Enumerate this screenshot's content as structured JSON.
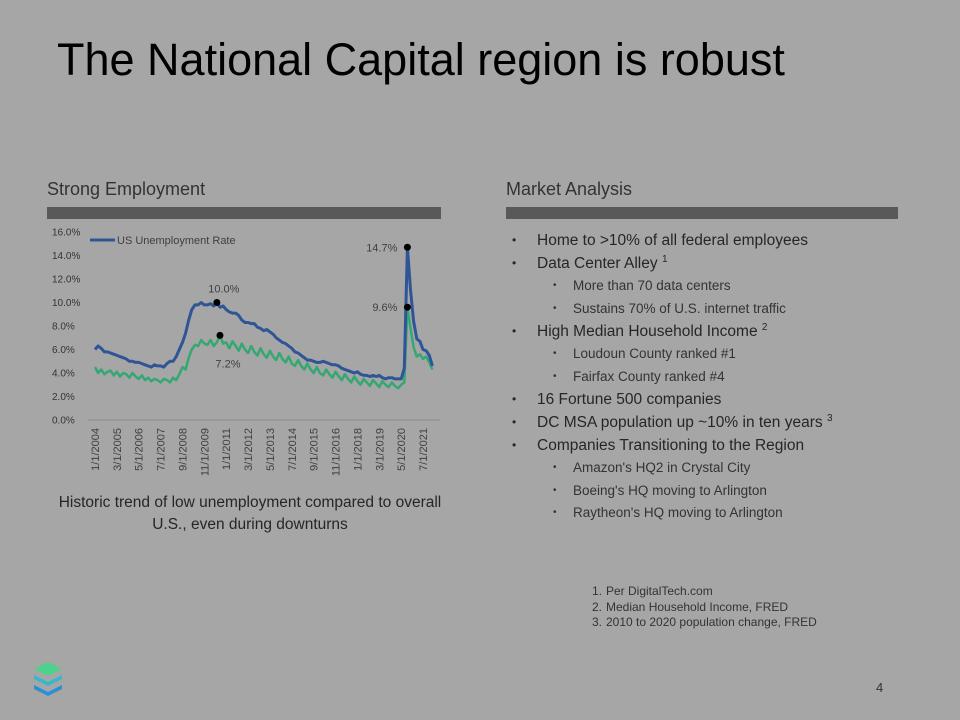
{
  "title": "The National Capital region is robust",
  "left_section": {
    "heading": "Strong Employment",
    "caption": "Historic trend of low unemployment compared to overall U.S., even during downturns"
  },
  "chart_data": {
    "type": "line",
    "categories": [
      "1/1/2004",
      null,
      null,
      null,
      null,
      null,
      null,
      "3/1/2005",
      null,
      null,
      null,
      null,
      null,
      null,
      "5/1/2006",
      null,
      null,
      null,
      null,
      null,
      null,
      "7/1/2007",
      null,
      null,
      null,
      null,
      null,
      null,
      "9/1/2008",
      null,
      null,
      null,
      null,
      null,
      null,
      "11/1/2009",
      null,
      null,
      null,
      null,
      null,
      null,
      "1/1/2011",
      null,
      null,
      null,
      null,
      null,
      null,
      "3/1/2012",
      null,
      null,
      null,
      null,
      null,
      null,
      "5/1/2013",
      null,
      null,
      null,
      null,
      null,
      null,
      "7/1/2014",
      null,
      null,
      null,
      null,
      null,
      null,
      "9/1/2015",
      null,
      null,
      null,
      null,
      null,
      null,
      "11/1/2016",
      null,
      null,
      null,
      null,
      null,
      null,
      "1/1/2018",
      null,
      null,
      null,
      null,
      null,
      null,
      "3/1/2019",
      null,
      null,
      null,
      null,
      null,
      null,
      "5/1/2020",
      null,
      null,
      null,
      null,
      null,
      null,
      "7/1/2021",
      null,
      null,
      null
    ],
    "series": [
      {
        "name": "US Unemployment Rate",
        "color": "#2f5597",
        "values": [
          6.0,
          6.3,
          6.1,
          5.8,
          5.8,
          5.7,
          5.6,
          5.5,
          5.4,
          5.3,
          5.2,
          5.0,
          5.0,
          4.9,
          4.9,
          4.8,
          4.7,
          4.6,
          4.5,
          4.7,
          4.6,
          4.6,
          4.5,
          4.8,
          5.0,
          5.0,
          5.4,
          6.0,
          6.6,
          7.4,
          8.5,
          9.4,
          9.8,
          9.8,
          10.0,
          9.8,
          9.8,
          9.9,
          9.7,
          10.0,
          9.6,
          9.7,
          9.4,
          9.2,
          9.1,
          9.1,
          8.9,
          8.5,
          8.3,
          8.3,
          8.2,
          8.2,
          7.9,
          7.8,
          7.6,
          7.7,
          7.5,
          7.3,
          7.0,
          6.8,
          6.6,
          6.5,
          6.3,
          6.1,
          5.8,
          5.7,
          5.5,
          5.3,
          5.1,
          5.1,
          5.0,
          4.9,
          4.9,
          5.0,
          4.9,
          4.8,
          4.7,
          4.7,
          4.6,
          4.4,
          4.3,
          4.2,
          4.1,
          4.0,
          4.1,
          3.9,
          3.8,
          3.8,
          3.7,
          3.8,
          3.7,
          3.8,
          3.6,
          3.5,
          3.6,
          3.6,
          3.5,
          3.5,
          3.5,
          4.4,
          14.7,
          11.1,
          8.4,
          6.9,
          6.7,
          6.0,
          5.9,
          5.5,
          4.6
        ],
        "value_labels": [
          null,
          null,
          null,
          null,
          null,
          null,
          null,
          null,
          null,
          null,
          null,
          null,
          null,
          null,
          null,
          null,
          null,
          null,
          null,
          null,
          null,
          null,
          null,
          null,
          null,
          null,
          null,
          null,
          null,
          null,
          null,
          null,
          null,
          null,
          null,
          null,
          null,
          null,
          null,
          "10.0%",
          null,
          null,
          null,
          null,
          null,
          null,
          null,
          null,
          null,
          null,
          null,
          null,
          null,
          null,
          null,
          null,
          null,
          null,
          null,
          null,
          null,
          null,
          null,
          null,
          null,
          null,
          null,
          null,
          null,
          null,
          null,
          null,
          null,
          null,
          null,
          null,
          null,
          null,
          null,
          null,
          null,
          null,
          null,
          null,
          null,
          null,
          null,
          null,
          null,
          null,
          null,
          null,
          null,
          null,
          null,
          null,
          null,
          null,
          null,
          null,
          "14.7%",
          null,
          null,
          null,
          null,
          null,
          null,
          null,
          null
        ]
      },
      {
        "color": "#33a872",
        "values": [
          4.5,
          4.0,
          4.3,
          3.9,
          4.1,
          4.2,
          3.8,
          4.1,
          3.7,
          4.0,
          3.9,
          3.6,
          4.0,
          3.7,
          3.5,
          3.8,
          3.4,
          3.6,
          3.3,
          3.5,
          3.4,
          3.2,
          3.5,
          3.4,
          3.2,
          3.6,
          3.4,
          3.9,
          4.5,
          4.3,
          5.3,
          6.0,
          6.4,
          6.3,
          6.8,
          6.5,
          6.4,
          6.8,
          6.3,
          6.6,
          7.2,
          6.5,
          6.6,
          6.1,
          6.7,
          6.3,
          5.9,
          6.5,
          6.0,
          5.7,
          6.3,
          5.8,
          5.5,
          6.1,
          5.6,
          5.3,
          5.9,
          5.4,
          5.1,
          5.7,
          5.2,
          4.9,
          5.4,
          4.8,
          4.6,
          5.1,
          4.6,
          4.3,
          4.8,
          4.3,
          4.0,
          4.5,
          4.0,
          3.8,
          4.3,
          3.9,
          3.6,
          4.1,
          3.7,
          3.4,
          3.9,
          3.5,
          3.2,
          3.7,
          3.3,
          3.0,
          3.5,
          3.2,
          2.9,
          3.4,
          3.1,
          2.8,
          3.3,
          3.0,
          2.8,
          3.2,
          2.9,
          2.7,
          3.0,
          3.2,
          9.6,
          7.8,
          6.2,
          5.4,
          5.6,
          5.2,
          5.4,
          4.9,
          4.3
        ],
        "value_labels": [
          null,
          null,
          null,
          null,
          null,
          null,
          null,
          null,
          null,
          null,
          null,
          null,
          null,
          null,
          null,
          null,
          null,
          null,
          null,
          null,
          null,
          null,
          null,
          null,
          null,
          null,
          null,
          null,
          null,
          null,
          null,
          null,
          null,
          null,
          null,
          null,
          null,
          null,
          null,
          null,
          "7.2%",
          null,
          null,
          null,
          null,
          null,
          null,
          null,
          null,
          null,
          null,
          null,
          null,
          null,
          null,
          null,
          null,
          null,
          null,
          null,
          null,
          null,
          null,
          null,
          null,
          null,
          null,
          null,
          null,
          null,
          null,
          null,
          null,
          null,
          null,
          null,
          null,
          null,
          null,
          null,
          null,
          null,
          null,
          null,
          null,
          null,
          null,
          null,
          null,
          null,
          null,
          null,
          null,
          null,
          null,
          null,
          null,
          null,
          null,
          null,
          "9.6%",
          null,
          null,
          null,
          null,
          null,
          null,
          null,
          null
        ]
      }
    ],
    "ylim": [
      0,
      16
    ],
    "yticks": [
      {
        "value": 0,
        "label": "0.0%"
      },
      {
        "value": 2,
        "label": "2.0%"
      },
      {
        "value": 4,
        "label": "4.0%"
      },
      {
        "value": 6,
        "label": "6.0%"
      },
      {
        "value": 8,
        "label": "8.0%"
      },
      {
        "value": 10,
        "label": "10.0%"
      },
      {
        "value": 12,
        "label": "12.0%"
      },
      {
        "value": 14,
        "label": "14.0%"
      },
      {
        "value": 16,
        "label": "16.0%"
      }
    ],
    "grid": false,
    "legend": "top-left"
  },
  "right_section": {
    "heading": "Market Analysis",
    "items": [
      {
        "text": "Home to >10% of all federal employees"
      },
      {
        "text": "Data Center Alley",
        "sup": "1",
        "children": [
          "More than 70 data centers",
          "Sustains 70% of U.S. internet traffic"
        ]
      },
      {
        "text": "High Median Household Income",
        "sup": "2",
        "children": [
          "Loudoun County ranked #1",
          "Fairfax  County ranked #4"
        ]
      },
      {
        "text": "16 Fortune 500 companies"
      },
      {
        "text": "DC MSA population up ~10% in ten years",
        "sup": "3"
      },
      {
        "text": "Companies Transitioning to the Region",
        "children": [
          "Amazon's HQ2 in Crystal City",
          "Boeing's HQ moving to Arlington",
          "Raytheon's HQ moving to Arlington"
        ]
      }
    ]
  },
  "footnotes": [
    {
      "marker": "1.",
      "text": "Per DigitalTech.com"
    },
    {
      "marker": "2.",
      "text": "Median Household Income, FRED"
    },
    {
      "marker": "3.",
      "text": "2010 to 2020 population change, FRED"
    }
  ],
  "page_number": "4"
}
